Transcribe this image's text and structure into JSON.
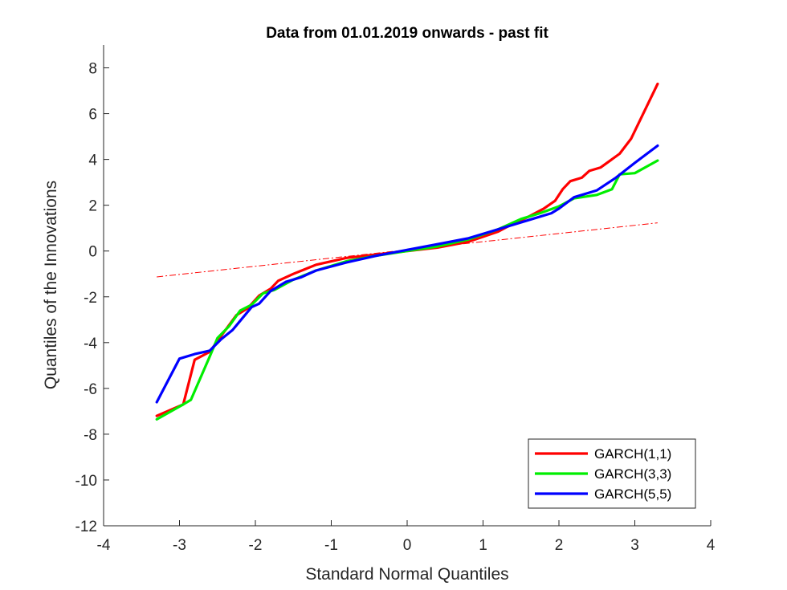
{
  "chart_data": {
    "type": "line",
    "title": "Data from 01.01.2019 onwards - past fit",
    "xlabel": "Standard Normal Quantiles",
    "ylabel": "Quantiles of the Innovations",
    "xlim": [
      -4,
      4
    ],
    "ylim": [
      -12,
      9
    ],
    "xticks": [
      -4,
      -3,
      -2,
      -1,
      0,
      1,
      2,
      3,
      4
    ],
    "yticks": [
      -12,
      -10,
      -8,
      -6,
      -4,
      -2,
      0,
      2,
      4,
      6,
      8
    ],
    "grid": false,
    "legend_position": "bottom-right",
    "series": [
      {
        "name": "GARCH(1,1)",
        "color": "#ff0000",
        "x": [
          -3.3,
          -2.95,
          -2.8,
          -2.6,
          -2.45,
          -2.25,
          -2.1,
          -1.95,
          -1.8,
          -1.7,
          -1.5,
          -1.2,
          -0.8,
          -0.4,
          0.0,
          0.4,
          0.8,
          1.2,
          1.4,
          1.6,
          1.8,
          1.95,
          2.05,
          2.15,
          2.3,
          2.4,
          2.55,
          2.8,
          2.95,
          3.3
        ],
        "y": [
          -7.2,
          -6.7,
          -4.75,
          -4.4,
          -3.7,
          -2.8,
          -2.5,
          -1.95,
          -1.65,
          -1.3,
          -1.0,
          -0.6,
          -0.3,
          -0.15,
          0.0,
          0.15,
          0.4,
          0.85,
          1.2,
          1.5,
          1.85,
          2.2,
          2.7,
          3.05,
          3.2,
          3.5,
          3.65,
          4.25,
          4.9,
          7.3
        ]
      },
      {
        "name": "GARCH(3,3)",
        "color": "#00ee00",
        "x": [
          -3.3,
          -2.95,
          -2.85,
          -2.6,
          -2.5,
          -2.35,
          -2.2,
          -2.05,
          -1.9,
          -1.75,
          -1.5,
          -1.2,
          -0.8,
          -0.4,
          0.0,
          0.4,
          0.8,
          1.2,
          1.5,
          1.75,
          2.0,
          2.2,
          2.5,
          2.7,
          2.8,
          3.0,
          3.3
        ],
        "y": [
          -7.35,
          -6.7,
          -6.5,
          -4.6,
          -3.8,
          -3.3,
          -2.6,
          -2.35,
          -1.85,
          -1.7,
          -1.25,
          -0.85,
          -0.45,
          -0.2,
          0.0,
          0.2,
          0.5,
          0.95,
          1.4,
          1.65,
          1.95,
          2.3,
          2.45,
          2.7,
          3.35,
          3.4,
          3.95
        ]
      },
      {
        "name": "GARCH(5,5)",
        "color": "#0000ff",
        "x": [
          -3.3,
          -3.0,
          -2.8,
          -2.6,
          -2.45,
          -2.3,
          -2.2,
          -2.05,
          -1.95,
          -1.8,
          -1.6,
          -1.4,
          -1.2,
          -0.8,
          -0.4,
          0.0,
          0.4,
          0.8,
          1.2,
          1.6,
          1.9,
          2.0,
          2.2,
          2.5,
          2.75,
          3.0,
          3.3
        ],
        "y": [
          -6.6,
          -4.7,
          -4.5,
          -4.35,
          -3.85,
          -3.45,
          -3.05,
          -2.45,
          -2.3,
          -1.75,
          -1.35,
          -1.15,
          -0.85,
          -0.5,
          -0.2,
          0.05,
          0.3,
          0.55,
          0.95,
          1.35,
          1.65,
          1.85,
          2.35,
          2.65,
          3.2,
          3.85,
          4.6
        ]
      }
    ],
    "reference_line": {
      "color": "#ff0000",
      "style": "dash-dot",
      "x": [
        -3.3,
        3.3
      ],
      "y": [
        -1.13,
        1.23
      ]
    }
  }
}
